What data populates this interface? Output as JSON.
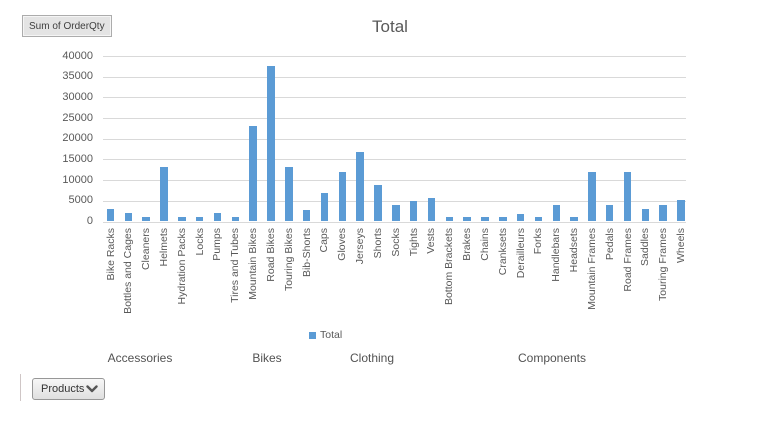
{
  "app": {
    "field_button_label": "Sum of OrderQty",
    "filter_button_label": "Products"
  },
  "chart_data": {
    "type": "bar",
    "title": "Total",
    "legend": [
      "Total"
    ],
    "legend_position": "bottom",
    "bar_color": "#5b9bd5",
    "gridline_color": "#d9d9d9",
    "text_color": "#595959",
    "grid": true,
    "ylim": [
      0,
      40000
    ],
    "yticks": [
      0,
      5000,
      10000,
      15000,
      20000,
      25000,
      30000,
      35000,
      40000
    ],
    "xlabel": "",
    "ylabel": "",
    "groups": [
      {
        "label": "Accessories",
        "categories": [
          "Bike Racks",
          "Bottles and Cages",
          "Cleaners",
          "Helmets",
          "Hydration Packs",
          "Locks",
          "Pumps",
          "Tires and Tubes"
        ],
        "values": [
          3100,
          2100,
          1000,
          13100,
          1000,
          1000,
          2100,
          1000
        ]
      },
      {
        "label": "Bikes",
        "categories": [
          "Mountain Bikes",
          "Road Bikes",
          "Touring Bikes"
        ],
        "values": [
          23200,
          37700,
          13100
        ]
      },
      {
        "label": "Clothing",
        "categories": [
          "Bib-Shorts",
          "Caps",
          "Gloves",
          "Jerseys",
          "Shorts",
          "Socks",
          "Tights",
          "Vests"
        ],
        "values": [
          2900,
          7000,
          11900,
          16800,
          8900,
          3900,
          4900,
          5800
        ]
      },
      {
        "label": "Components",
        "categories": [
          "Bottom Brackets",
          "Brakes",
          "Chains",
          "Cranksets",
          "Derailleurs",
          "Forks",
          "Handlebars",
          "Headsets",
          "Mountain Frames",
          "Pedals",
          "Road Frames",
          "Saddles",
          "Touring Frames",
          "Wheels"
        ],
        "values": [
          1000,
          1000,
          1000,
          1000,
          1900,
          1000,
          3900,
          1000,
          12000,
          3900,
          12000,
          3100,
          3900,
          5200
        ]
      }
    ]
  }
}
